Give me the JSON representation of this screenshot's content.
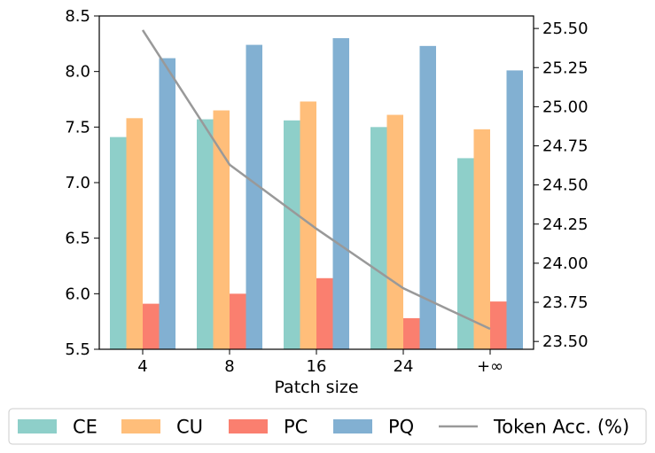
{
  "chart_data": {
    "type": "bar",
    "title": "",
    "xlabel": "Patch size",
    "ylabel": "",
    "y2label": "",
    "categories": [
      "4",
      "8",
      "16",
      "24",
      "+∞"
    ],
    "ylim": [
      5.5,
      8.5
    ],
    "y2lim": [
      23.45,
      25.58
    ],
    "yticks": [
      5.5,
      6.0,
      6.5,
      7.0,
      7.5,
      8.0,
      8.5
    ],
    "yticklabels": [
      "5.5",
      "6.0",
      "6.5",
      "7.0",
      "7.5",
      "8.0",
      "8.5"
    ],
    "y2ticks": [
      23.5,
      23.75,
      24.0,
      24.25,
      24.5,
      24.75,
      25.0,
      25.25,
      25.5
    ],
    "y2ticklabels": [
      "23.50",
      "23.75",
      "24.00",
      "24.25",
      "24.50",
      "24.75",
      "25.00",
      "25.25",
      "25.50"
    ],
    "series": [
      {
        "name": "CE",
        "color": "#8ecfc9",
        "values": [
          7.41,
          7.57,
          7.56,
          7.5,
          7.22
        ]
      },
      {
        "name": "CU",
        "color": "#ffbe7a",
        "values": [
          7.58,
          7.65,
          7.73,
          7.61,
          7.48
        ]
      },
      {
        "name": "PC",
        "color": "#fa7f6f",
        "values": [
          5.91,
          6.0,
          6.14,
          5.78,
          5.93
        ]
      },
      {
        "name": "PQ",
        "color": "#82b0d2",
        "values": [
          8.12,
          8.24,
          8.3,
          8.23,
          8.01
        ]
      }
    ],
    "line": {
      "name": "Token Acc. (%)",
      "color": "#999999",
      "axis": "right",
      "values": [
        25.49,
        24.63,
        24.22,
        23.84,
        23.58
      ]
    },
    "grid": false,
    "legend_position": "bottom"
  }
}
